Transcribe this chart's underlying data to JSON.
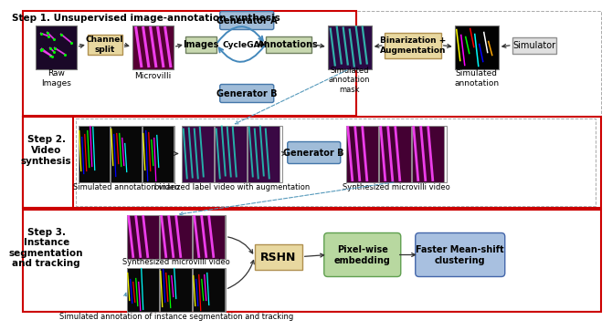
{
  "step1_label": "Step 1. Unsupervised image-annotation synthesis",
  "step2_label": "Step 2.\nVideo\nsynthesis",
  "step3_label": "Step 3.\nInstance\nsegmentation\nand tracking",
  "gen_a_label": "Generator A",
  "gen_b_label": "Generator B",
  "gen_b2_label": "Generator B",
  "channel_split_label": "Channel\nsplit",
  "images_label": "Images",
  "annotations_label": "Annotations",
  "cycleGAN_label": "CycleGAN",
  "binarization_label": "Binarization +\nAugmentation",
  "simulator_label": "Simulator",
  "rshn_label": "RSHN",
  "pixelwise_label": "Pixel-wise\nembedding",
  "meanshift_label": "Faster Mean-shift\nclustering",
  "raw_images_label": "Raw\nImages",
  "microvilli_label": "Microvilli",
  "sim_ann_mask_label": "Simulated\nannotation\nmask",
  "sim_ann_label": "Simulated\nannotation",
  "sim_ann_video_label": "Simulated annotation video",
  "binarized_video_label": "binarized label video with augmentation",
  "synth_microvilli_label": "Synthesized microvilli video",
  "synth_microvilli2_label": "Synthesized microvilli video",
  "sim_inst_label": "Simulated annotation of instance segmentation and tracking",
  "colors": {
    "step_border": "#cc0000",
    "gen_ab_fill": "#a0bcd8",
    "gen_ab_border": "#4477aa",
    "channel_split_fill": "#e8d8a0",
    "channel_split_border": "#b09050",
    "images_fill": "#c8d8b0",
    "images_border": "#708060",
    "annotations_fill": "#c8d8b0",
    "annotations_border": "#708060",
    "binarization_fill": "#e8d8a0",
    "binarization_border": "#b09050",
    "simulator_fill": "#e0e0e0",
    "simulator_border": "#909090",
    "rshn_fill": "#e8d8a0",
    "rshn_border": "#b09050",
    "pixelwise_fill": "#b8d8a0",
    "pixelwise_border": "#60a050",
    "meanshift_fill": "#a8c0e0",
    "meanshift_border": "#4466aa",
    "arrow_color": "#444444",
    "dashed_arrow": "#5599bb",
    "bg_color": "#ffffff",
    "dashed_box": "#aaaaaa"
  }
}
